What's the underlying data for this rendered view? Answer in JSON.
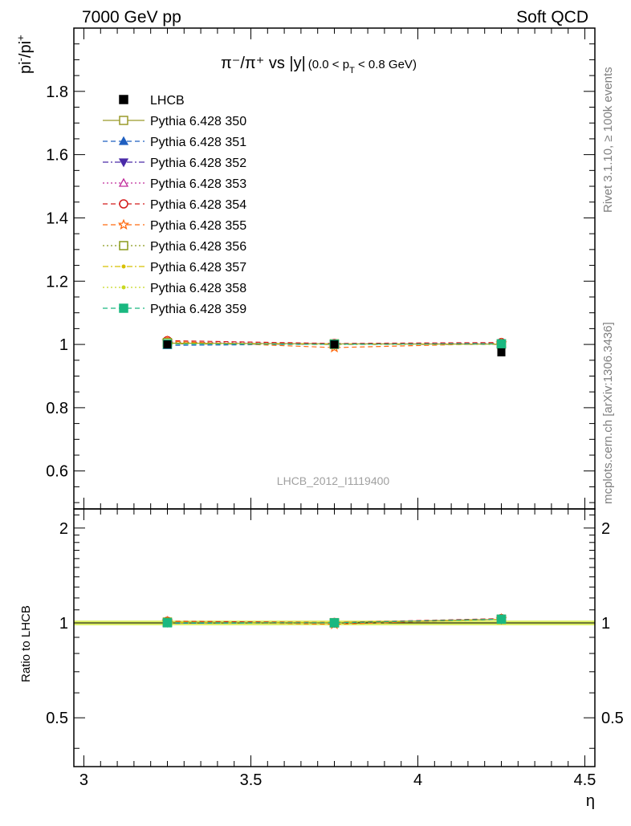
{
  "header": {
    "left": "7000 GeV pp",
    "right": "Soft QCD"
  },
  "side_labels": {
    "rivet": "Rivet 3.1.10, ≥ 100k events",
    "mcplots": "mcplots.cern.ch [arXiv:1306.3436]"
  },
  "plot": {
    "title_main": "π⁻/π⁺ vs |y|",
    "title_range_a": "(0.0 < p",
    "title_range_sub": "T",
    "title_range_b": " < 0.8 GeV)",
    "ylabel_main": "pi",
    "ylabel_sup1": "-",
    "ylabel_mid": "/pi",
    "ylabel_sup2": "+",
    "ratio_ylabel": "Ratio to LHCB",
    "xlabel": "η",
    "watermark": "LHCB_2012_I1119400"
  },
  "chart_data": {
    "type": "scatter",
    "x": [
      3.25,
      3.75,
      4.25
    ],
    "xlim": [
      2.97,
      4.53
    ],
    "ylim": [
      0.48,
      2.0
    ],
    "ratio_ylim": [
      0.35,
      2.3
    ],
    "ratio_yscale": "log",
    "x_ticks": [
      "3",
      "3.5",
      "4",
      "4.5"
    ],
    "y_ticks": [
      "0.6",
      "0.8",
      "1",
      "1.2",
      "1.4",
      "1.6",
      "1.8"
    ],
    "ratio_ticks": [
      "0.5",
      "1",
      "2"
    ],
    "legend_position": "top-left",
    "data": {
      "name": "LHCB",
      "y": [
        1.0,
        1.0,
        0.975
      ],
      "color": "#000000"
    },
    "series": [
      {
        "name": "Pythia 6.428 350",
        "y": [
          1.004,
          1.002,
          1.001
        ],
        "color": "#9a9a2a",
        "marker": "square-open",
        "dash": "solid"
      },
      {
        "name": "Pythia 6.428 351",
        "y": [
          0.997,
          1.001,
          1.002
        ],
        "color": "#1f5fc0",
        "marker": "triangle-up",
        "dash": "dashed"
      },
      {
        "name": "Pythia 6.428 352",
        "y": [
          1.002,
          1.0,
          1.0
        ],
        "color": "#4a2aa8",
        "marker": "triangle-down",
        "dash": "dashdot"
      },
      {
        "name": "Pythia 6.428 353",
        "y": [
          1.008,
          1.001,
          1.004
        ],
        "color": "#c02a9a",
        "marker": "triangle-open",
        "dash": "dotted"
      },
      {
        "name": "Pythia 6.428 354",
        "y": [
          1.012,
          1.003,
          1.006
        ],
        "color": "#d41a1a",
        "marker": "circle-open",
        "dash": "dashed"
      },
      {
        "name": "Pythia 6.428 355",
        "y": [
          1.01,
          0.99,
          1.003
        ],
        "color": "#ff6a10",
        "marker": "star-open",
        "dash": "dashed"
      },
      {
        "name": "Pythia 6.428 356",
        "y": [
          1.006,
          1.0,
          1.002
        ],
        "color": "#8a9a1a",
        "marker": "square-open",
        "dash": "dotted"
      },
      {
        "name": "Pythia 6.428 357",
        "y": [
          1.003,
          1.001,
          1.001
        ],
        "color": "#d8c000",
        "marker": "dot",
        "dash": "dashdot"
      },
      {
        "name": "Pythia 6.428 358",
        "y": [
          1.002,
          1.0,
          1.0
        ],
        "color": "#c8d820",
        "marker": "dot",
        "dash": "dotted"
      },
      {
        "name": "Pythia 6.428 359",
        "y": [
          1.001,
          1.001,
          1.002
        ],
        "color": "#1ab880",
        "marker": "square",
        "dash": "dashed"
      }
    ]
  }
}
